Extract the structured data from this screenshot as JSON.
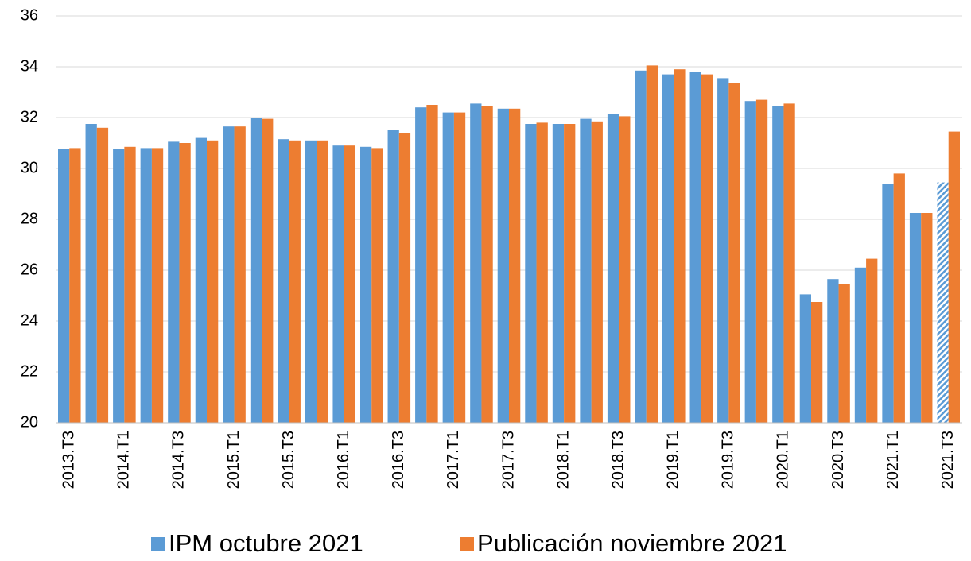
{
  "chart_data": {
    "type": "bar",
    "categories": [
      "2013.T3",
      null,
      "2014.T1",
      null,
      "2014.T3",
      null,
      "2015.T1",
      null,
      "2015.T3",
      null,
      "2016.T1",
      null,
      "2016.T3",
      null,
      "2017.T1",
      null,
      "2017.T3",
      null,
      "2018.T1",
      null,
      "2018.T3",
      null,
      "2019.T1",
      null,
      "2019.T3",
      null,
      "2020.T1",
      null,
      "2020.T3",
      null,
      "2021.T1",
      null,
      "2021.T3"
    ],
    "series": [
      {
        "name": "IPM octubre 2021",
        "color": "#5b9bd5",
        "values": [
          30.75,
          31.75,
          30.75,
          30.8,
          31.05,
          31.2,
          31.65,
          32.0,
          31.15,
          31.1,
          30.9,
          30.85,
          31.5,
          32.4,
          32.2,
          32.55,
          32.35,
          31.75,
          31.75,
          31.95,
          32.15,
          33.85,
          33.7,
          33.8,
          33.55,
          32.65,
          32.45,
          25.05,
          25.65,
          26.1,
          29.4,
          28.25,
          29.45
        ]
      },
      {
        "name": "Publicación noviembre 2021",
        "color": "#ed7d31",
        "values": [
          30.8,
          31.6,
          30.85,
          30.8,
          31.0,
          31.1,
          31.65,
          31.95,
          31.1,
          31.1,
          30.9,
          30.8,
          31.4,
          32.5,
          32.2,
          32.45,
          32.35,
          31.8,
          31.75,
          31.85,
          32.05,
          34.05,
          33.9,
          33.7,
          33.35,
          32.7,
          32.55,
          24.75,
          25.45,
          26.45,
          29.8,
          28.25,
          31.45
        ]
      }
    ],
    "ylim": [
      20,
      36
    ],
    "yticks": [
      20,
      22,
      24,
      26,
      28,
      30,
      32,
      34,
      36
    ],
    "grid": true,
    "legend": "bottom"
  }
}
